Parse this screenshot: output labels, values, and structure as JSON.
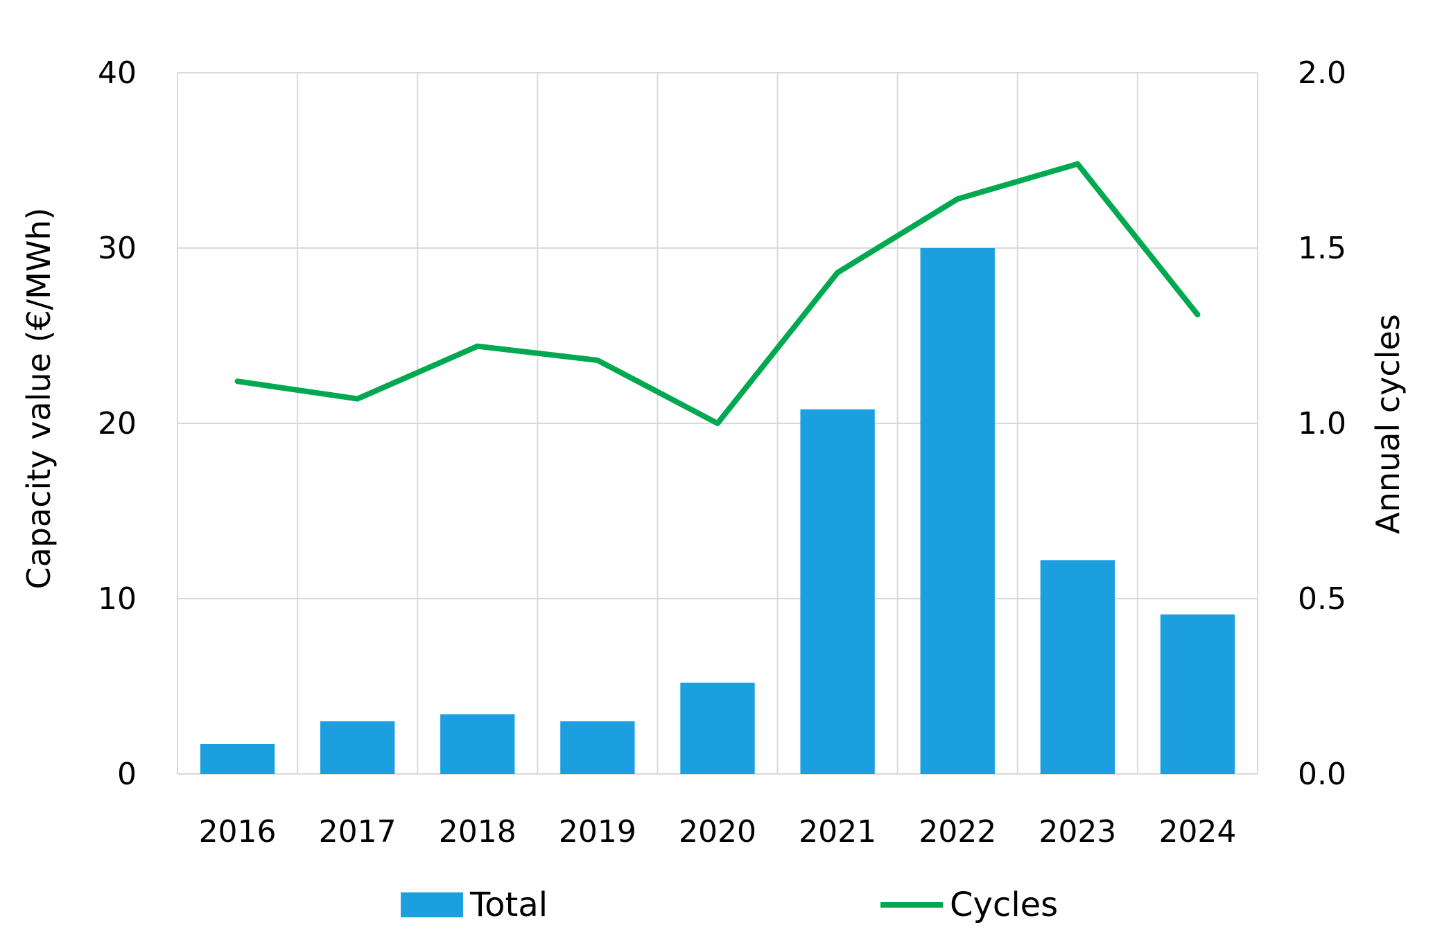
{
  "chart_data": {
    "type": "bar",
    "categories": [
      "2016",
      "2017",
      "2018",
      "2019",
      "2020",
      "2021",
      "2022",
      "2023",
      "2024"
    ],
    "series": [
      {
        "name": "Total",
        "type": "bar",
        "axis": "left",
        "color": "#1c9fde",
        "values": [
          1.7,
          3.0,
          3.4,
          3.0,
          5.2,
          20.8,
          30.0,
          12.2,
          9.1
        ]
      },
      {
        "name": "Cycles",
        "type": "line",
        "axis": "right",
        "color": "#00a94f",
        "values": [
          1.12,
          1.07,
          1.22,
          1.18,
          1.0,
          1.43,
          1.64,
          1.74,
          1.31
        ]
      }
    ],
    "xlabel": "",
    "ylabel": "Capacity value (€/MWh)",
    "y2label": "Annual cycles",
    "ylim": [
      0,
      40
    ],
    "y2lim": [
      0,
      2.0
    ],
    "yticks": [
      "0",
      "10",
      "20",
      "30",
      "40"
    ],
    "y2ticks": [
      "0.0",
      "0.5",
      "1.0",
      "1.5",
      "2.0"
    ],
    "grid": true,
    "legend_position": "bottom"
  }
}
